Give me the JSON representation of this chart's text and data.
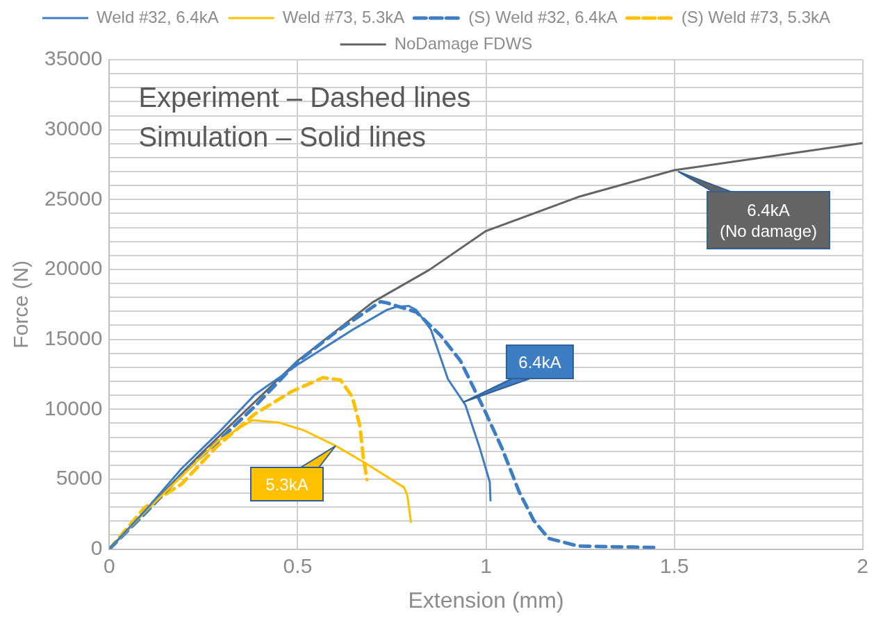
{
  "chart_data": {
    "type": "line",
    "xlabel": "Extension (mm)",
    "ylabel": "Force (N)",
    "xlim": [
      0,
      2
    ],
    "xticks": [
      0,
      0.5,
      1,
      1.5,
      2
    ],
    "ylim": [
      0,
      35000
    ],
    "yticks": [
      0,
      {
        "value": 1000,
        "label": null
      },
      {
        "value": 2000,
        "label": null
      },
      {
        "value": 3000,
        "label": null
      },
      {
        "value": 4000,
        "label": null
      },
      5000,
      {
        "value": 6000,
        "label": null
      },
      {
        "value": 7000,
        "label": null
      },
      {
        "value": 8000,
        "label": null
      },
      {
        "value": 9000,
        "label": null
      },
      10000,
      {
        "value": 11000,
        "label": null
      },
      {
        "value": 12000,
        "label": null
      },
      {
        "value": 13000,
        "label": null
      },
      {
        "value": 14000,
        "label": null
      },
      15000,
      {
        "value": 16000,
        "label": null
      },
      {
        "value": 17000,
        "label": null
      },
      {
        "value": 18000,
        "label": null
      },
      {
        "value": 19000,
        "label": null
      },
      20000,
      {
        "value": 21000,
        "label": null
      },
      {
        "value": 22000,
        "label": null
      },
      {
        "value": 23000,
        "label": null
      },
      {
        "value": 24000,
        "label": null
      },
      25000,
      {
        "value": 26000,
        "label": null
      },
      {
        "value": 27000,
        "label": null
      },
      {
        "value": 28000,
        "label": null
      },
      {
        "value": 29000,
        "label": null
      },
      30000,
      {
        "value": 31000,
        "label": null
      },
      {
        "value": 32000,
        "label": null
      },
      {
        "value": 33000,
        "label": null
      },
      {
        "value": 34000,
        "label": null
      },
      35000
    ],
    "grid": true,
    "legend": "top",
    "marker": "none",
    "series": [
      {
        "name": "Weld #32, 6.4kA",
        "color": "#3c7dc4",
        "line_style": "solid",
        "x": [
          0,
          0.1,
          0.191,
          0.288,
          0.386,
          0.503,
          0.6,
          0.645,
          0.737,
          0.762,
          0.795,
          0.815,
          0.854,
          0.899,
          0.945,
          0.984,
          1.01,
          1.012
        ],
        "values": [
          0,
          2900,
          5740,
          8280,
          11040,
          13250,
          14900,
          15680,
          17110,
          17330,
          17390,
          17100,
          15680,
          12150,
          10320,
          7180,
          4800,
          3420
        ]
      },
      {
        "name": "Weld #73, 5.3kA",
        "color": "#ffc000",
        "line_style": "solid",
        "x": [
          0,
          0.1,
          0.191,
          0.288,
          0.38,
          0.45,
          0.516,
          0.6,
          0.678,
          0.782,
          0.791,
          0.801
        ],
        "values": [
          0,
          2800,
          5190,
          7730,
          9220,
          9050,
          8500,
          7400,
          6180,
          4420,
          3860,
          1880
        ]
      },
      {
        "name": "(S) Weld #32, 6.4kA",
        "color": "#3c7dc4",
        "line_style": "dashed",
        "x": [
          0,
          0.1,
          0.191,
          0.288,
          0.386,
          0.5,
          0.6,
          0.72,
          0.737,
          0.815,
          0.879,
          0.932,
          0.996,
          1.043,
          1.088,
          1.127,
          1.166,
          1.244,
          1.452
        ],
        "values": [
          0,
          2700,
          5300,
          7700,
          10200,
          13400,
          15500,
          17700,
          17610,
          16950,
          15290,
          13470,
          9940,
          7180,
          4090,
          2040,
          770,
          220,
          110
        ]
      },
      {
        "name": "(S) Weld #73, 5.3kA",
        "color": "#ffc000",
        "line_style": "dashed",
        "x": [
          0,
          0.094,
          0.191,
          0.288,
          0.386,
          0.483,
          0.567,
          0.614,
          0.645,
          0.665,
          0.674,
          0.684
        ],
        "values": [
          0,
          2980,
          4640,
          7400,
          9660,
          11260,
          12260,
          12090,
          10880,
          8830,
          6620,
          4970
        ]
      },
      {
        "name": "NoDamage FDWS",
        "color": "#646464",
        "line_style": "solid",
        "x": [
          0,
          0.191,
          0.25,
          0.5,
          0.7,
          0.85,
          1,
          1.25,
          1.5,
          2
        ],
        "values": [
          0,
          5400,
          7010,
          13470,
          17670,
          19980,
          22750,
          25230,
          27100,
          29040
        ]
      }
    ],
    "annotations": [
      "Experiment – Dashed lines",
      "Simulation – Solid lines",
      {
        "text": "6.4kA",
        "x": 0.94,
        "y": 10500
      },
      {
        "text": "5.3kA",
        "x": 0.6,
        "y": 7400
      },
      {
        "text": "6.4kA\n(No damage)",
        "x": 1.51,
        "y": 27000
      }
    ]
  }
}
